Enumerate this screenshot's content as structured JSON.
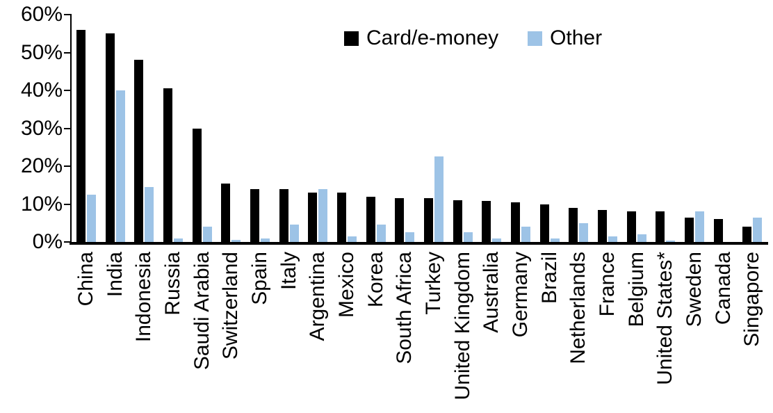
{
  "chart_data": {
    "type": "bar",
    "title": "",
    "xlabel": "",
    "ylabel": "",
    "ylim": [
      0,
      60
    ],
    "ytick_step": 10,
    "ytick_labels": [
      "0%",
      "10%",
      "20%",
      "30%",
      "40%",
      "50%",
      "60%"
    ],
    "grid": false,
    "legend_position": "top-center",
    "categories": [
      "China",
      "India",
      "Indonesia",
      "Russia",
      "Saudi Arabia",
      "Switzerland",
      "Spain",
      "Italy",
      "Argentina",
      "Mexico",
      "Korea",
      "South Africa",
      "Turkey",
      "United Kingdom",
      "Australia",
      "Germany",
      "Brazil",
      "Netherlands",
      "France",
      "Belgium",
      "United States*",
      "Sweden",
      "Canada",
      "Singapore"
    ],
    "series": [
      {
        "name": "Card/e-money",
        "color": "#000000",
        "values": [
          56,
          55,
          48,
          40.5,
          30,
          15.5,
          14,
          14,
          13,
          13,
          12,
          11.5,
          11.5,
          11,
          10.8,
          10.5,
          10,
          9,
          8.5,
          8,
          8,
          6.5,
          6,
          4
        ]
      },
      {
        "name": "Other",
        "color": "#9DC3E6",
        "values": [
          12.5,
          40,
          14.5,
          1,
          4,
          0.5,
          1,
          4.5,
          14,
          1.5,
          4.5,
          2.5,
          22.5,
          2.5,
          1,
          4,
          1,
          5,
          1.5,
          2,
          0.3,
          8,
          0,
          6.5
        ]
      }
    ]
  }
}
